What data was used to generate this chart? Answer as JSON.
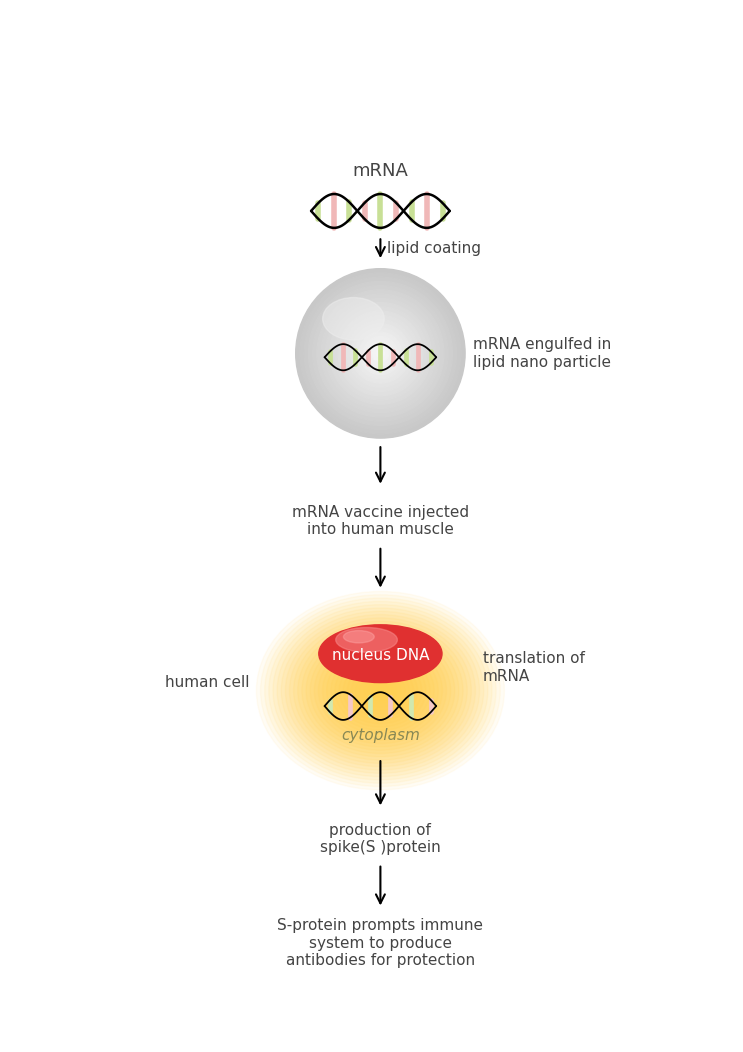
{
  "bg_color": "#ffffff",
  "text_color": "#444444",
  "labels": {
    "mrna": "mRNA",
    "lipid_coating": "lipid coating",
    "nanoparticle": "mRNA engulfed in\nlipid nano particle",
    "injected": "mRNA vaccine injected\ninto human muscle",
    "translation": "translation of\nmRNA",
    "human_cell": "human cell",
    "cytoplasm": "cytoplasm",
    "nucleus": "nucleus DNA",
    "production": "production of\nspike(S )protein",
    "antibody": "S-protein prompts immune\nsystem to produce\nantibodies for protection"
  },
  "dna_bar_colors": [
    "#c8e096",
    "#f0b8b8",
    "#c8e096",
    "#f0b8b8",
    "#c8e096",
    "#f0b8b8",
    "#c8e096",
    "#f0b8b8",
    "#c8e096"
  ],
  "dna_bar_colors2": [
    "#d0e8b0",
    "#f5c8c8",
    "#d0e8b0",
    "#f5c8c8",
    "#d0e8b0",
    "#f5c8c8"
  ],
  "nano_gray": "#c8c8c8",
  "nano_highlight": "#e8e8e8",
  "nucleus_color": "#e03030",
  "nucleus_highlight": "#f06060",
  "glow_color": "#ffd060",
  "antibody_outer": "#9090cc",
  "antibody_inner": "#2020a0"
}
